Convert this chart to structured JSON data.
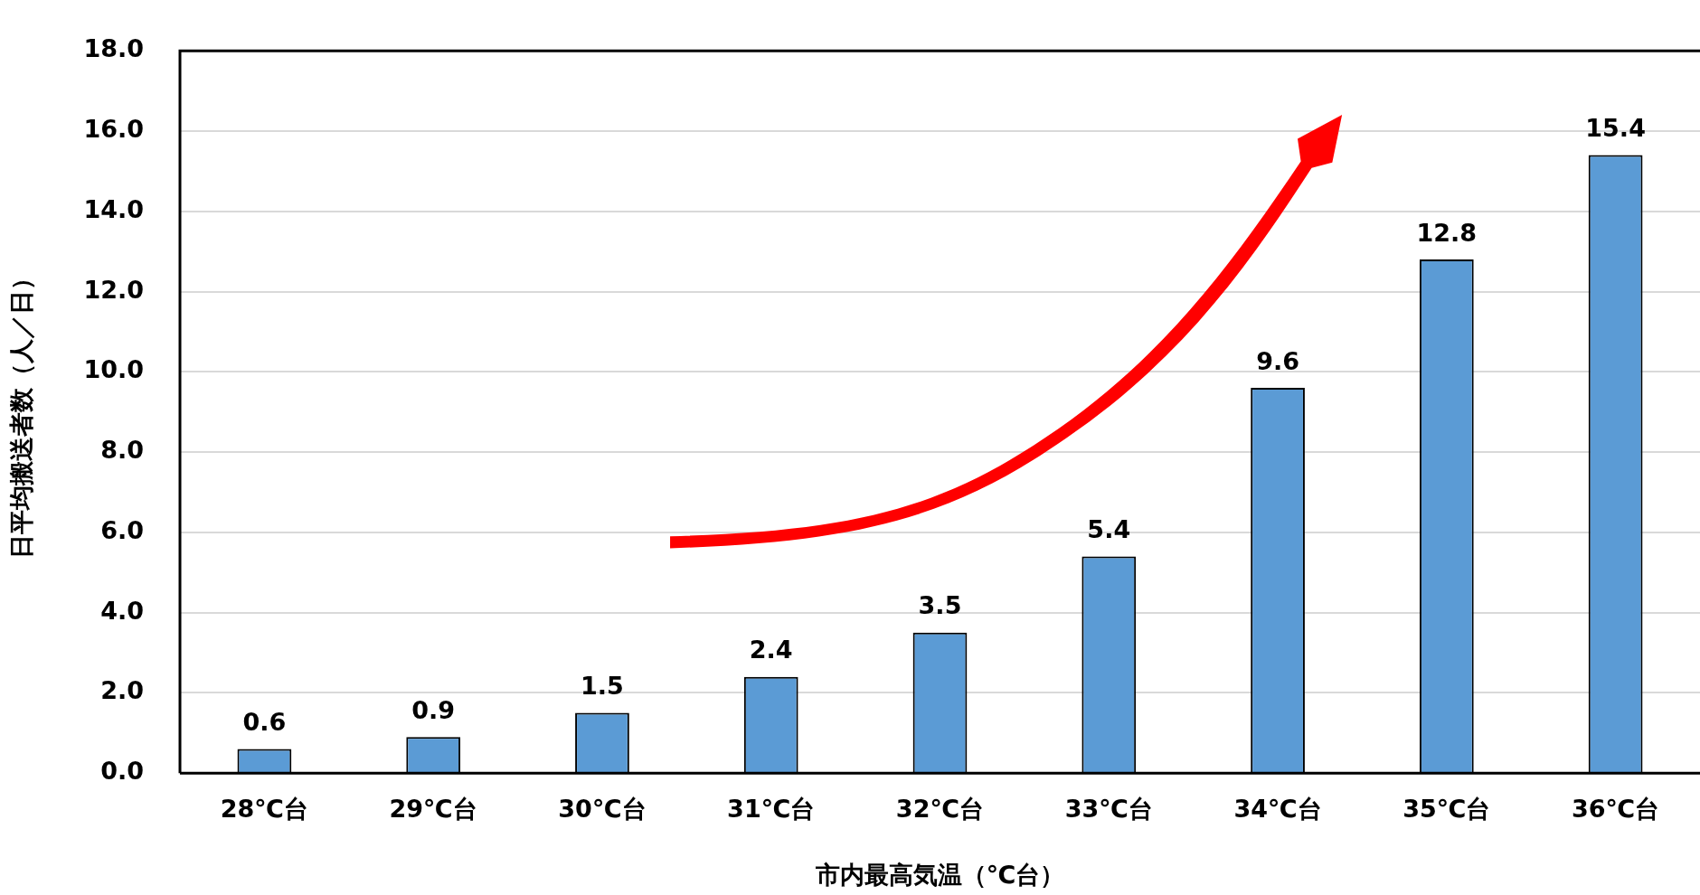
{
  "chart_data": {
    "type": "bar",
    "xlabel": "市内最高気温（℃台）",
    "ylabel": "日平均搬送者数（人／日）",
    "categories": [
      "28℃台",
      "29℃台",
      "30℃台",
      "31℃台",
      "32℃台",
      "33℃台",
      "34℃台",
      "35℃台",
      "36℃台"
    ],
    "values": [
      0.6,
      0.9,
      1.5,
      2.4,
      3.5,
      5.4,
      9.6,
      12.8,
      15.4
    ],
    "color": "#5b9bd5",
    "ylim": [
      0,
      18
    ],
    "yticks": [
      {
        "value": 0,
        "label": "0.0"
      },
      {
        "value": 2,
        "label": "2.0"
      },
      {
        "value": 4,
        "label": "4.0"
      },
      {
        "value": 6,
        "label": "6.0"
      },
      {
        "value": 8,
        "label": "8.0"
      },
      {
        "value": 10,
        "label": "10.0"
      },
      {
        "value": 12,
        "label": "12.0"
      },
      {
        "value": 14,
        "label": "14.0"
      },
      {
        "value": 16,
        "label": "16.0"
      },
      {
        "value": 18,
        "label": "18.0"
      }
    ],
    "grid": "y",
    "data_labels": true
  }
}
